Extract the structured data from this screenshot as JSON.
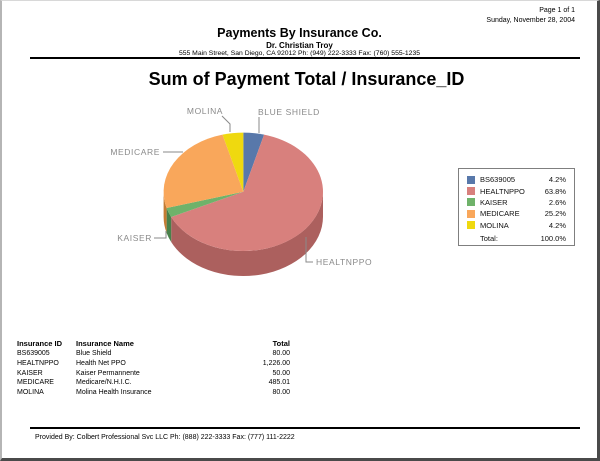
{
  "page": {
    "page_number": "Page 1 of 1",
    "date": "Sunday, November 28, 2004"
  },
  "header": {
    "company": "Payments By Insurance Co.",
    "doctor": "Dr. Christian Troy",
    "address": "555 Main Street, San Diego, CA 92012 Ph: (949) 222-3333 Fax: (760) 555-1235"
  },
  "chart_data": {
    "type": "pie",
    "style": "3d",
    "title": "Sum of Payment Total / Insurance_ID",
    "direction": "clockwise",
    "start_angle_deg": 0,
    "legend_position": "right",
    "slices": [
      {
        "id": "BS639005",
        "label": "BLUE SHIELD",
        "pct": 4.2,
        "value": 80.0,
        "color": "#5878AA",
        "side_color": "#40587E"
      },
      {
        "id": "HEALTNPPO",
        "label": "HEALTNPPO",
        "pct": 63.8,
        "value": 1226.0,
        "color": "#D8807D",
        "side_color": "#AC605E"
      },
      {
        "id": "KAISER",
        "label": "KAISER",
        "pct": 2.6,
        "value": 50.0,
        "color": "#6FB26A",
        "side_color": "#49814A"
      },
      {
        "id": "MEDICARE",
        "label": "MEDICARE",
        "pct": 25.2,
        "value": 485.01,
        "color": "#F9A75B",
        "side_color": "#C47B33"
      },
      {
        "id": "MOLINA",
        "label": "MOLINA",
        "pct": 4.2,
        "value": 80.0,
        "color": "#EFD90F",
        "side_color": "#B7A50E"
      }
    ],
    "legend": {
      "total_label": "Total:",
      "total_pct": "100.0%"
    }
  },
  "table": {
    "headers": [
      "Insurance ID",
      "Insurance Name",
      "Total"
    ],
    "rows": [
      [
        "BS639005",
        "Blue Shield",
        "80.00"
      ],
      [
        "HEALTNPPO",
        "Health Net PPO",
        "1,226.00"
      ],
      [
        "KAISER",
        "Kaiser Permannente",
        "50.00"
      ],
      [
        "MEDICARE",
        "Medicare/N.H.I.C.",
        "485.01"
      ],
      [
        "MOLINA",
        "Molina Health Insurance",
        "80.00"
      ]
    ]
  },
  "footer": {
    "provided_by": "Provided By: Colbert Professional Svc LLC Ph: (888) 222-3333 Fax: (777) 111-2222"
  }
}
